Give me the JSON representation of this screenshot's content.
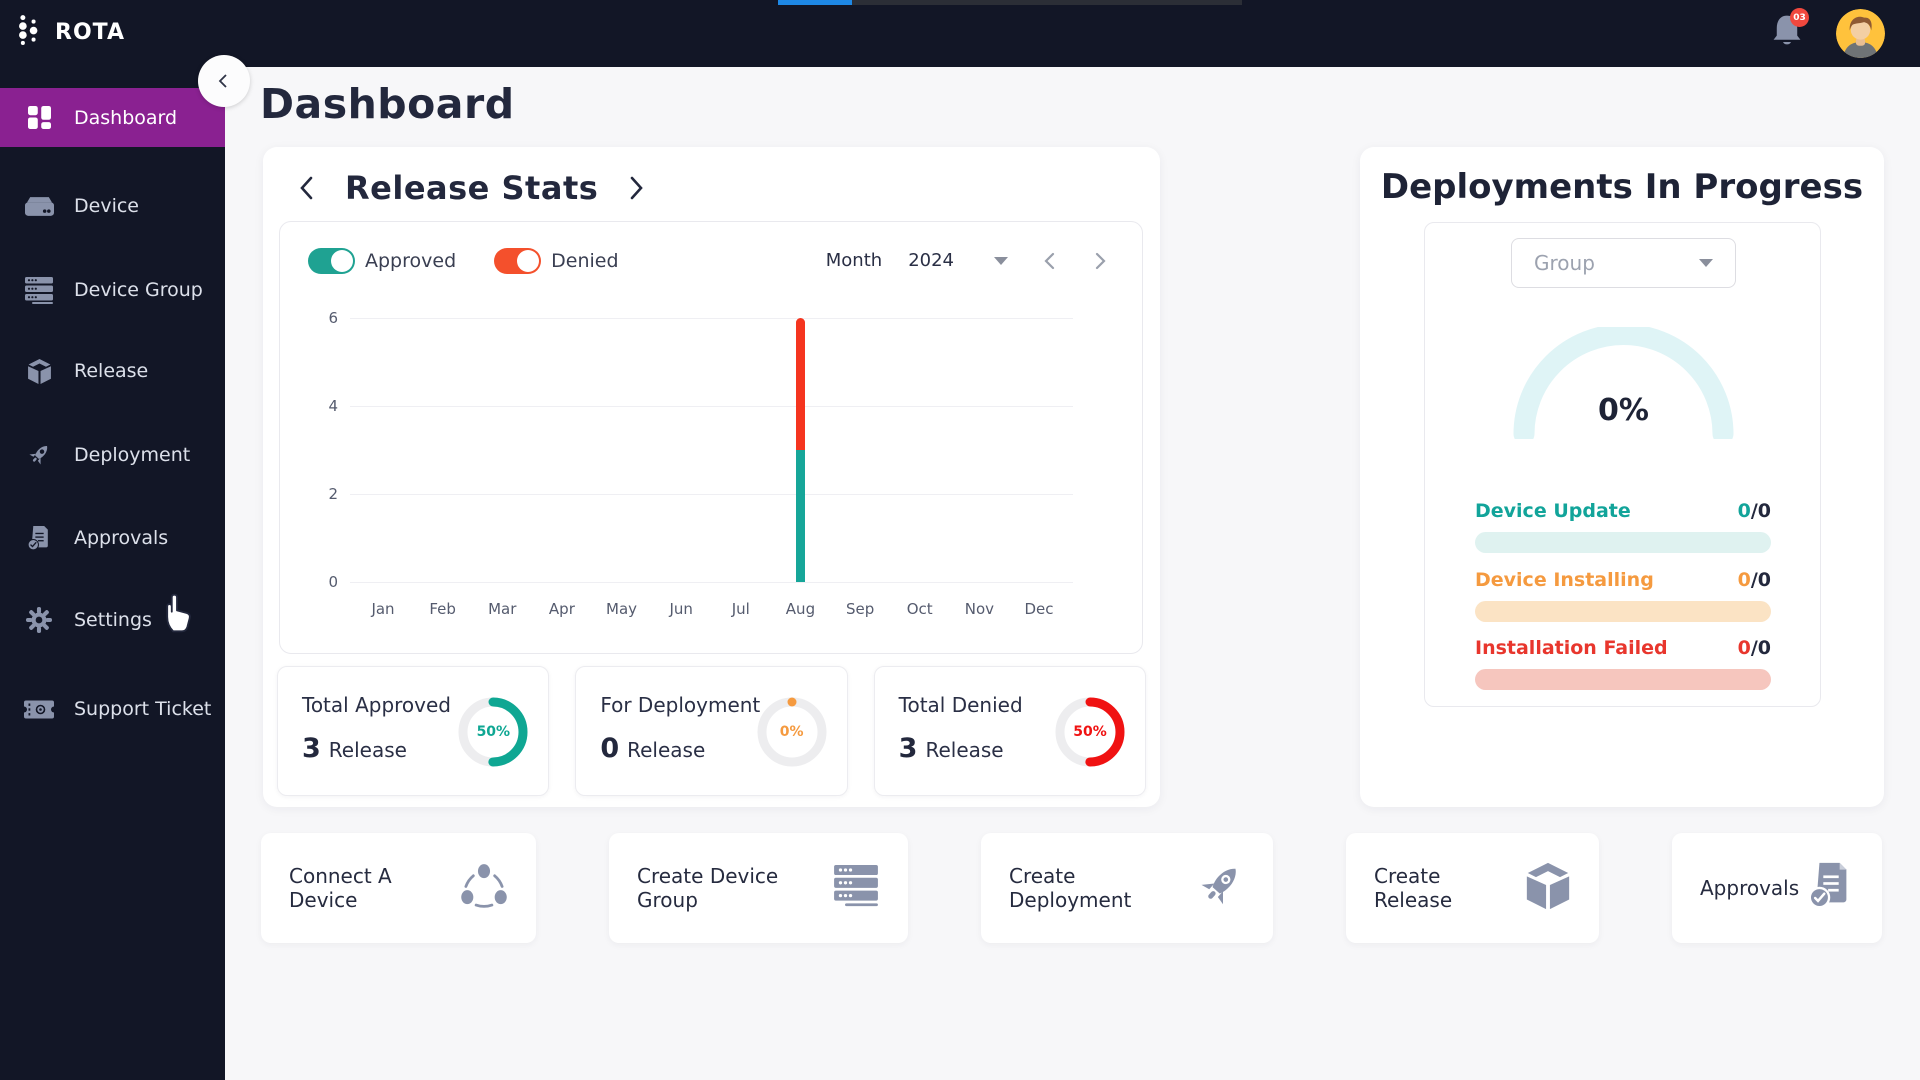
{
  "topbar": {
    "brand": "ROTA",
    "notification_badge": "03",
    "loading_bar_color": "#1E88E5"
  },
  "sidebar": {
    "items": [
      {
        "label": "Dashboard",
        "active": true
      },
      {
        "label": "Device",
        "active": false
      },
      {
        "label": "Device Group",
        "active": false
      },
      {
        "label": "Release",
        "active": false
      },
      {
        "label": "Deployment",
        "active": false
      },
      {
        "label": "Approvals",
        "active": false
      },
      {
        "label": "Settings",
        "active": false
      },
      {
        "label": "Support Ticket",
        "active": false
      }
    ],
    "active_color": "#8A2191"
  },
  "page": {
    "title": "Dashboard"
  },
  "release_stats": {
    "title": "Release Stats",
    "toggles": [
      {
        "label": "Approved",
        "color": "#1FA292",
        "on": true
      },
      {
        "label": "Denied",
        "color": "#F4502C",
        "on": true
      }
    ],
    "period_label": "Month",
    "year": "2024",
    "summary_cards": [
      {
        "title": "Total Approved",
        "count": "3",
        "unit": "Release",
        "percent": "50%",
        "ring_pct": 50,
        "color": "#0FA793"
      },
      {
        "title": "For Deployment",
        "count": "0",
        "unit": "Release",
        "percent": "0%",
        "ring_pct": 0,
        "color": "#F59A3F"
      },
      {
        "title": "Total Denied",
        "count": "3",
        "unit": "Release",
        "percent": "50%",
        "ring_pct": 50,
        "color": "#F01212"
      }
    ]
  },
  "chart_data": {
    "type": "bar",
    "stacked": true,
    "categories": [
      "Jan",
      "Feb",
      "Mar",
      "Apr",
      "May",
      "Jun",
      "Jul",
      "Aug",
      "Sep",
      "Oct",
      "Nov",
      "Dec"
    ],
    "series": [
      {
        "name": "Approved",
        "color": "#16A699",
        "values": [
          0,
          0,
          0,
          0,
          0,
          0,
          0,
          3,
          0,
          0,
          0,
          0
        ]
      },
      {
        "name": "Denied",
        "color": "#F5351F",
        "values": [
          0,
          0,
          0,
          0,
          0,
          0,
          0,
          3,
          0,
          0,
          0,
          0
        ]
      }
    ],
    "ylim": [
      0,
      6
    ],
    "yticks": [
      0,
      2,
      4,
      6
    ],
    "xlabel": "",
    "ylabel": "",
    "legend": [
      "Approved",
      "Denied"
    ],
    "legend_position": "top-left",
    "grid": "horizontal"
  },
  "deployments": {
    "title": "Deployments In Progress",
    "group_placeholder": "Group",
    "gauge_percent": "0%",
    "gauge_color": "#DFF4F6",
    "rows": [
      {
        "label": "Device Update",
        "value": "0",
        "rest": "/0",
        "color": "#12A49A",
        "bar_color": "#DFF2F0"
      },
      {
        "label": "Device Installing",
        "value": "0",
        "rest": "/0",
        "color": "#F59A3F",
        "bar_color": "#FBE3C4"
      },
      {
        "label": "Installation Failed",
        "value": "0",
        "rest": "/0",
        "color": "#E8362D",
        "bar_color": "#F6C6BE"
      }
    ]
  },
  "quick_actions": [
    {
      "label": "Connect A Device",
      "icon": "network-icon"
    },
    {
      "label": "Create Device Group",
      "icon": "server-icon"
    },
    {
      "label": "Create Deployment",
      "icon": "rocket-icon"
    },
    {
      "label": "Create Release",
      "icon": "cube-icon"
    },
    {
      "label": "Approvals",
      "icon": "approvals-doc-icon"
    }
  ]
}
